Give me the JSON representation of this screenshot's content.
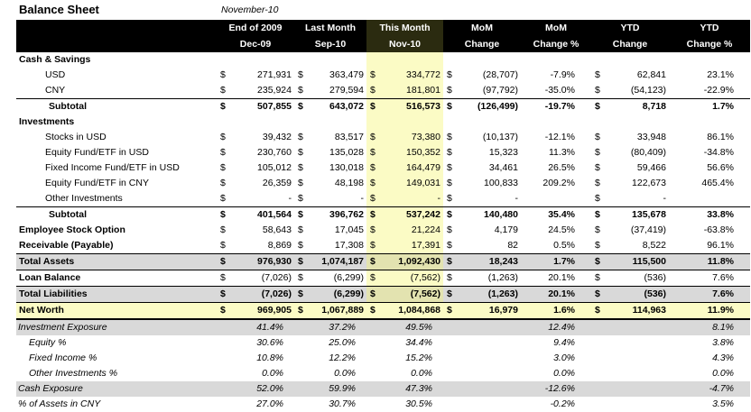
{
  "title": "Balance Sheet",
  "report_date": "November-10",
  "headers": [
    [
      "",
      ""
    ],
    [
      "End of 2009",
      "Dec-09"
    ],
    [
      "Last Month",
      "Sep-10"
    ],
    [
      "This Month",
      "Nov-10"
    ],
    [
      "MoM",
      "Change"
    ],
    [
      "MoM",
      "Change %"
    ],
    [
      "YTD",
      "Change"
    ],
    [
      "YTD",
      "Change %"
    ]
  ],
  "currency_symbol": "$",
  "rows": [
    {
      "type": "section",
      "label": "Cash & Savings"
    },
    {
      "type": "item",
      "label": "USD",
      "v": [
        "271,931",
        "363,479",
        "334,772",
        "(28,707)",
        "-7.9%",
        "62,841",
        "23.1%"
      ]
    },
    {
      "type": "item",
      "label": "CNY",
      "v": [
        "235,924",
        "279,594",
        "181,801",
        "(97,792)",
        "-35.0%",
        "(54,123)",
        "-22.9%"
      ]
    },
    {
      "type": "subtotal",
      "label": "Subtotal",
      "v": [
        "507,855",
        "643,072",
        "516,573",
        "(126,499)",
        "-19.7%",
        "8,718",
        "1.7%"
      ]
    },
    {
      "type": "section",
      "label": "Investments"
    },
    {
      "type": "item",
      "label": "Stocks in USD",
      "v": [
        "39,432",
        "83,517",
        "73,380",
        "(10,137)",
        "-12.1%",
        "33,948",
        "86.1%"
      ]
    },
    {
      "type": "item",
      "label": "Equity Fund/ETF in USD",
      "v": [
        "230,760",
        "135,028",
        "150,352",
        "15,323",
        "11.3%",
        "(80,409)",
        "-34.8%"
      ]
    },
    {
      "type": "item",
      "label": "Fixed Income Fund/ETF in USD",
      "v": [
        "105,012",
        "130,018",
        "164,479",
        "34,461",
        "26.5%",
        "59,466",
        "56.6%"
      ]
    },
    {
      "type": "item",
      "label": "Equity Fund/ETF in CNY",
      "v": [
        "26,359",
        "48,198",
        "149,031",
        "100,833",
        "209.2%",
        "122,673",
        "465.4%"
      ]
    },
    {
      "type": "item",
      "label": "Other Investments",
      "v": [
        "-",
        "-",
        "-",
        "-",
        "",
        "-",
        ""
      ]
    },
    {
      "type": "subtotal",
      "label": "Subtotal",
      "v": [
        "401,564",
        "396,762",
        "537,242",
        "140,480",
        "35.4%",
        "135,678",
        "33.8%"
      ]
    },
    {
      "type": "line",
      "label": "Employee Stock Option",
      "v": [
        "58,643",
        "17,045",
        "21,224",
        "4,179",
        "24.5%",
        "(37,419)",
        "-63.8%"
      ]
    },
    {
      "type": "line",
      "label": "Receivable (Payable)",
      "v": [
        "8,869",
        "17,308",
        "17,391",
        "82",
        "0.5%",
        "8,522",
        "96.1%"
      ]
    },
    {
      "type": "total",
      "label": "Total Assets",
      "v": [
        "976,930",
        "1,074,187",
        "1,092,430",
        "18,243",
        "1.7%",
        "115,500",
        "11.8%"
      ]
    },
    {
      "type": "line",
      "label": "Loan Balance",
      "v": [
        "(7,026)",
        "(6,299)",
        "(7,562)",
        "(1,263)",
        "20.1%",
        "(536)",
        "7.6%"
      ]
    },
    {
      "type": "total",
      "label": "Total Liabilities",
      "v": [
        "(7,026)",
        "(6,299)",
        "(7,562)",
        "(1,263)",
        "20.1%",
        "(536)",
        "7.6%"
      ]
    },
    {
      "type": "networth",
      "label": "Net Worth",
      "v": [
        "969,905",
        "1,067,889",
        "1,084,868",
        "16,979",
        "1.6%",
        "114,963",
        "11.9%"
      ]
    }
  ],
  "exposure": [
    {
      "label": "Investment Exposure",
      "gray": true,
      "indent": false,
      "v": [
        "41.4%",
        "37.2%",
        "49.5%",
        "12.4%",
        "8.1%"
      ]
    },
    {
      "label": "Equity %",
      "gray": false,
      "indent": true,
      "v": [
        "30.6%",
        "25.0%",
        "34.4%",
        "9.4%",
        "3.8%"
      ]
    },
    {
      "label": "Fixed Income %",
      "gray": false,
      "indent": true,
      "v": [
        "10.8%",
        "12.2%",
        "15.2%",
        "3.0%",
        "4.3%"
      ]
    },
    {
      "label": "Other Investments %",
      "gray": false,
      "indent": true,
      "v": [
        "0.0%",
        "0.0%",
        "0.0%",
        "0.0%",
        "0.0%"
      ]
    },
    {
      "label": "Cash Exposure",
      "gray": true,
      "indent": false,
      "v": [
        "52.0%",
        "59.9%",
        "47.3%",
        "-12.6%",
        "-4.7%"
      ]
    },
    {
      "label": "% of Assets in CNY",
      "gray": false,
      "indent": false,
      "v": [
        "27.0%",
        "30.7%",
        "30.5%",
        "-0.2%",
        "3.5%"
      ]
    }
  ]
}
